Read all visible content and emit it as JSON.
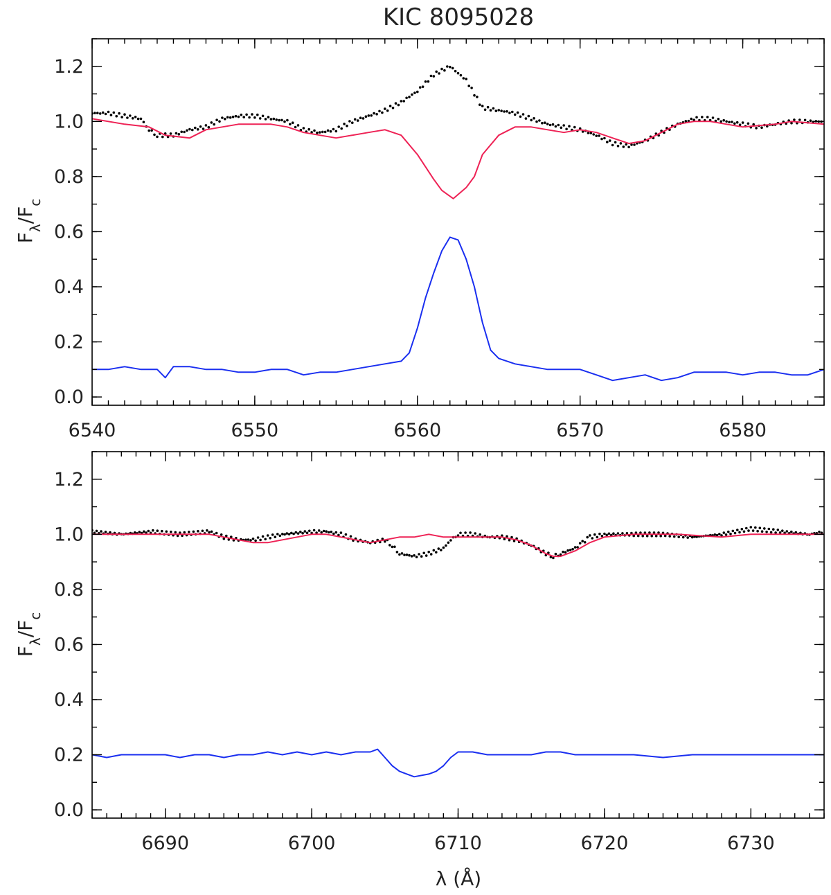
{
  "chart_data": [
    {
      "type": "line",
      "title": "KIC 8095028",
      "ylabel_main": "F",
      "ylabel_sub1": "λ",
      "ylabel_mid": "/F",
      "ylabel_sub2": "c",
      "xlim": [
        6540,
        6585
      ],
      "ylim": [
        -0.03,
        1.3
      ],
      "xticks": [
        6540,
        6550,
        6560,
        6570,
        6580
      ],
      "xtick_labels": [
        "6540",
        "6550",
        "6560",
        "6570",
        "6580"
      ],
      "yticks": [
        0.0,
        0.2,
        0.4,
        0.6,
        0.8,
        1.0,
        1.2
      ],
      "ytick_labels": [
        "0.0",
        "0.2",
        "0.4",
        "0.6",
        "0.8",
        "1.0",
        "1.2"
      ],
      "series": [
        {
          "color": "#000000",
          "style": "dots",
          "x": [
            6540,
            6541,
            6542,
            6543,
            6543.5,
            6544,
            6545,
            6546,
            6547,
            6548,
            6549,
            6550,
            6551,
            6552,
            6553,
            6554,
            6555,
            6556,
            6557,
            6558,
            6559,
            6560,
            6561,
            6562,
            6563,
            6564,
            6565,
            6566,
            6567,
            6568,
            6569,
            6570,
            6571,
            6572,
            6573,
            6574,
            6575,
            6576,
            6577,
            6578,
            6579,
            6580,
            6581,
            6582,
            6583,
            6584,
            6585
          ],
          "y": [
            1.03,
            1.03,
            1.02,
            1.01,
            0.97,
            0.95,
            0.95,
            0.97,
            0.98,
            1.01,
            1.02,
            1.02,
            1.01,
            1.0,
            0.97,
            0.96,
            0.97,
            1.0,
            1.02,
            1.04,
            1.07,
            1.11,
            1.17,
            1.2,
            1.15,
            1.05,
            1.04,
            1.03,
            1.01,
            0.99,
            0.98,
            0.97,
            0.95,
            0.92,
            0.91,
            0.93,
            0.96,
            0.99,
            1.01,
            1.01,
            1.0,
            0.99,
            0.98,
            0.99,
            1.0,
            1.0,
            1.0
          ]
        },
        {
          "color": "#ee2255",
          "style": "line",
          "x": [
            6540,
            6542,
            6543.5,
            6544.5,
            6546,
            6547,
            6549,
            6551,
            6552,
            6553,
            6555,
            6557,
            6558,
            6559,
            6560,
            6561,
            6561.5,
            6562.2,
            6563,
            6563.5,
            6564,
            6565,
            6566,
            6567,
            6568,
            6569,
            6570,
            6571,
            6572,
            6573,
            6574,
            6575,
            6576,
            6577,
            6578,
            6580,
            6582,
            6583,
            6585
          ],
          "y": [
            1.01,
            0.99,
            0.98,
            0.95,
            0.94,
            0.97,
            0.99,
            0.99,
            0.98,
            0.96,
            0.94,
            0.96,
            0.97,
            0.95,
            0.88,
            0.79,
            0.75,
            0.72,
            0.76,
            0.8,
            0.88,
            0.95,
            0.98,
            0.98,
            0.97,
            0.96,
            0.97,
            0.96,
            0.94,
            0.92,
            0.93,
            0.96,
            0.99,
            1.0,
            1.0,
            0.98,
            0.99,
            1.0,
            0.99
          ]
        },
        {
          "color": "#1a2ff0",
          "style": "line",
          "x": [
            6540,
            6541,
            6542,
            6543,
            6544,
            6544.5,
            6545,
            6546,
            6547,
            6548,
            6549,
            6550,
            6551,
            6552,
            6553,
            6554,
            6555,
            6556,
            6557,
            6558,
            6559,
            6559.5,
            6560,
            6560.5,
            6561,
            6561.5,
            6562,
            6562.5,
            6563,
            6563.5,
            6564,
            6564.5,
            6565,
            6566,
            6567,
            6568,
            6569,
            6570,
            6571,
            6572,
            6573,
            6574,
            6575,
            6576,
            6577,
            6578,
            6579,
            6580,
            6581,
            6582,
            6583,
            6584,
            6585
          ],
          "y": [
            0.1,
            0.1,
            0.11,
            0.1,
            0.1,
            0.07,
            0.11,
            0.11,
            0.1,
            0.1,
            0.09,
            0.09,
            0.1,
            0.1,
            0.08,
            0.09,
            0.09,
            0.1,
            0.11,
            0.12,
            0.13,
            0.16,
            0.25,
            0.36,
            0.45,
            0.53,
            0.58,
            0.57,
            0.5,
            0.4,
            0.27,
            0.17,
            0.14,
            0.12,
            0.11,
            0.1,
            0.1,
            0.1,
            0.08,
            0.06,
            0.07,
            0.08,
            0.06,
            0.07,
            0.09,
            0.09,
            0.09,
            0.08,
            0.09,
            0.09,
            0.08,
            0.08,
            0.1
          ]
        }
      ]
    },
    {
      "type": "line",
      "xlabel": "λ (Å)",
      "ylabel_main": "F",
      "ylabel_sub1": "λ",
      "ylabel_mid": "/F",
      "ylabel_sub2": "c",
      "xlim": [
        6685,
        6735
      ],
      "ylim": [
        -0.03,
        1.3
      ],
      "xticks": [
        6690,
        6700,
        6710,
        6720,
        6730
      ],
      "xtick_labels": [
        "6690",
        "6700",
        "6710",
        "6720",
        "6730"
      ],
      "yticks": [
        0.0,
        0.2,
        0.4,
        0.6,
        0.8,
        1.0,
        1.2
      ],
      "ytick_labels": [
        "0.0",
        "0.2",
        "0.4",
        "0.6",
        "0.8",
        "1.0",
        "1.2"
      ],
      "series": [
        {
          "color": "#000000",
          "style": "dots",
          "x": [
            6685,
            6687,
            6689,
            6691,
            6693,
            6694,
            6695,
            6696,
            6697,
            6698,
            6700,
            6701,
            6702,
            6703,
            6704,
            6705,
            6705.5,
            6706,
            6707,
            6708,
            6709,
            6709.5,
            6710,
            6711,
            6712,
            6713,
            6714,
            6715,
            6716,
            6716.5,
            6717,
            6718,
            6718.5,
            6719,
            6720,
            6722,
            6724,
            6726,
            6728,
            6730,
            6732,
            6734,
            6735
          ],
          "y": [
            1.01,
            1.0,
            1.01,
            1.0,
            1.01,
            0.99,
            0.98,
            0.98,
            0.99,
            1.0,
            1.01,
            1.01,
            1.0,
            0.98,
            0.97,
            0.98,
            0.96,
            0.93,
            0.92,
            0.93,
            0.95,
            0.98,
            1.0,
            1.0,
            0.99,
            0.99,
            0.98,
            0.96,
            0.93,
            0.92,
            0.93,
            0.95,
            0.97,
            0.99,
            1.0,
            1.0,
            1.0,
            0.99,
            1.0,
            1.02,
            1.01,
            1.0,
            1.01
          ]
        },
        {
          "color": "#ee2255",
          "style": "line",
          "x": [
            6685,
            6690,
            6693,
            6694,
            6695,
            6696,
            6697,
            6698,
            6699,
            6700,
            6701,
            6702,
            6703,
            6704,
            6705,
            6706,
            6707,
            6708,
            6709,
            6710,
            6711,
            6712,
            6713,
            6714,
            6715,
            6716,
            6716.5,
            6717,
            6718,
            6719,
            6720,
            6722,
            6725,
            6728,
            6730,
            6732,
            6735
          ],
          "y": [
            1.0,
            1.0,
            1.0,
            0.99,
            0.98,
            0.97,
            0.97,
            0.98,
            0.99,
            1.0,
            1.0,
            0.99,
            0.98,
            0.97,
            0.98,
            0.99,
            0.99,
            1.0,
            0.99,
            0.99,
            0.99,
            0.99,
            0.99,
            0.98,
            0.96,
            0.93,
            0.92,
            0.92,
            0.94,
            0.97,
            0.99,
            1.0,
            1.0,
            0.99,
            1.0,
            1.0,
            1.0
          ]
        },
        {
          "color": "#1a2ff0",
          "style": "line",
          "x": [
            6685,
            6686,
            6687,
            6688,
            6689,
            6690,
            6691,
            6692,
            6693,
            6694,
            6695,
            6696,
            6697,
            6698,
            6699,
            6700,
            6701,
            6702,
            6703,
            6704,
            6704.5,
            6705,
            6705.5,
            6706,
            6706.5,
            6707,
            6708,
            6708.5,
            6709,
            6709.5,
            6710,
            6711,
            6712,
            6713,
            6714,
            6715,
            6716,
            6717,
            6718,
            6719,
            6720,
            6722,
            6724,
            6726,
            6728,
            6730,
            6732,
            6734,
            6735
          ],
          "y": [
            0.2,
            0.19,
            0.2,
            0.2,
            0.2,
            0.2,
            0.19,
            0.2,
            0.2,
            0.19,
            0.2,
            0.2,
            0.21,
            0.2,
            0.21,
            0.2,
            0.21,
            0.2,
            0.21,
            0.21,
            0.22,
            0.19,
            0.16,
            0.14,
            0.13,
            0.12,
            0.13,
            0.14,
            0.16,
            0.19,
            0.21,
            0.21,
            0.2,
            0.2,
            0.2,
            0.2,
            0.21,
            0.21,
            0.2,
            0.2,
            0.2,
            0.2,
            0.19,
            0.2,
            0.2,
            0.2,
            0.2,
            0.2,
            0.2
          ]
        }
      ]
    }
  ]
}
